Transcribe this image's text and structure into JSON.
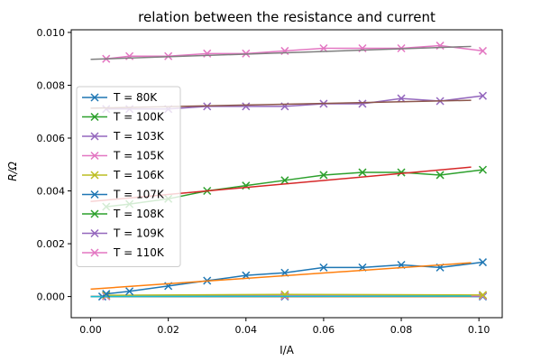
{
  "chart_data": {
    "type": "line",
    "title": "relation between the resistance and current",
    "xlabel": "I/A",
    "ylabel": "R/Ω",
    "xlim": [
      -0.005,
      0.106
    ],
    "ylim": [
      -0.0008,
      0.0101
    ],
    "xticks": [
      0.0,
      0.02,
      0.04,
      0.06,
      0.08,
      0.1
    ],
    "xtick_labels": [
      "0.00",
      "0.02",
      "0.04",
      "0.06",
      "0.08",
      "0.10"
    ],
    "yticks": [
      0.0,
      0.002,
      0.004,
      0.006,
      0.008,
      0.01
    ],
    "ytick_labels": [
      "0.000",
      "0.002",
      "0.004",
      "0.006",
      "0.008",
      "0.010"
    ],
    "grid": false,
    "legend_position": "center-left",
    "series": [
      {
        "name": "T = 80K",
        "color": "#1f77b4",
        "x": [
          0.003,
          0.05,
          0.101
        ],
        "y": [
          0.0,
          0.0,
          0.0
        ],
        "fit": {
          "x": [
            0.0,
            0.098
          ],
          "y": [
            0.0,
            0.0
          ],
          "color": "#ff7f0e"
        }
      },
      {
        "name": "T = 100K",
        "color": "#2ca02c",
        "x": [
          0.004,
          0.05,
          0.101
        ],
        "y": [
          2e-05,
          3e-05,
          4e-05
        ],
        "fit": {
          "x": [
            0.0,
            0.098
          ],
          "y": [
            0.0,
            2e-05
          ],
          "color": "#d62728"
        }
      },
      {
        "name": "T = 103K",
        "color": "#9467bd",
        "x": [
          0.004,
          0.05,
          0.101
        ],
        "y": [
          1e-05,
          2e-05,
          2e-05
        ],
        "fit": {
          "x": [
            0.0,
            0.098
          ],
          "y": [
            0.0,
            1e-05
          ],
          "color": "#8c564b"
        }
      },
      {
        "name": "T = 105K",
        "color": "#e377c2",
        "x": [
          0.004,
          0.05,
          0.101
        ],
        "y": [
          1e-05,
          3e-05,
          3e-05
        ],
        "fit": {
          "x": [
            0.0,
            0.098
          ],
          "y": [
            0.0,
            1e-05
          ],
          "color": "#7f7f7f"
        }
      },
      {
        "name": "T = 106K",
        "color": "#bcbd22",
        "x": [
          0.004,
          0.05,
          0.101
        ],
        "y": [
          5e-05,
          8e-05,
          6e-05
        ],
        "fit": {
          "x": [
            0.0,
            0.098
          ],
          "y": [
            0.0,
            2e-05
          ],
          "color": "#17becf"
        }
      },
      {
        "name": "T = 107K",
        "color": "#1f77b4",
        "x": [
          0.004,
          0.01,
          0.02,
          0.03,
          0.04,
          0.05,
          0.06,
          0.07,
          0.08,
          0.09,
          0.101
        ],
        "y": [
          0.0001,
          0.0002,
          0.0004,
          0.0006,
          0.0008,
          0.0009,
          0.0011,
          0.0011,
          0.0012,
          0.0011,
          0.0013
        ],
        "fit": {
          "x": [
            0.0,
            0.098
          ],
          "y": [
            0.00028,
            0.00128
          ],
          "color": "#ff7f0e"
        }
      },
      {
        "name": "T = 108K",
        "color": "#2ca02c",
        "x": [
          0.004,
          0.01,
          0.02,
          0.03,
          0.04,
          0.05,
          0.06,
          0.07,
          0.08,
          0.09,
          0.101
        ],
        "y": [
          0.0034,
          0.0035,
          0.0037,
          0.004,
          0.0042,
          0.0044,
          0.0046,
          0.0047,
          0.0047,
          0.0046,
          0.0048
        ],
        "fit": {
          "x": [
            0.0,
            0.098
          ],
          "y": [
            0.0036,
            0.0049
          ],
          "color": "#d62728"
        }
      },
      {
        "name": "T = 109K",
        "color": "#9467bd",
        "x": [
          0.004,
          0.01,
          0.02,
          0.03,
          0.04,
          0.05,
          0.06,
          0.07,
          0.08,
          0.09,
          0.101
        ],
        "y": [
          0.0071,
          0.0071,
          0.0071,
          0.0072,
          0.0072,
          0.0072,
          0.0073,
          0.0073,
          0.0075,
          0.0074,
          0.0076
        ],
        "fit": {
          "x": [
            0.0,
            0.098
          ],
          "y": [
            0.00713,
            0.00743
          ],
          "color": "#8c564b"
        }
      },
      {
        "name": "T = 110K",
        "color": "#e377c2",
        "x": [
          0.004,
          0.01,
          0.02,
          0.03,
          0.04,
          0.05,
          0.06,
          0.07,
          0.08,
          0.09,
          0.101
        ],
        "y": [
          0.009,
          0.0091,
          0.0091,
          0.0092,
          0.0092,
          0.0093,
          0.0094,
          0.0094,
          0.0094,
          0.0095,
          0.0093
        ],
        "fit": {
          "x": [
            0.0,
            0.098
          ],
          "y": [
            0.00898,
            0.00947
          ],
          "color": "#7f7f7f"
        }
      }
    ]
  }
}
